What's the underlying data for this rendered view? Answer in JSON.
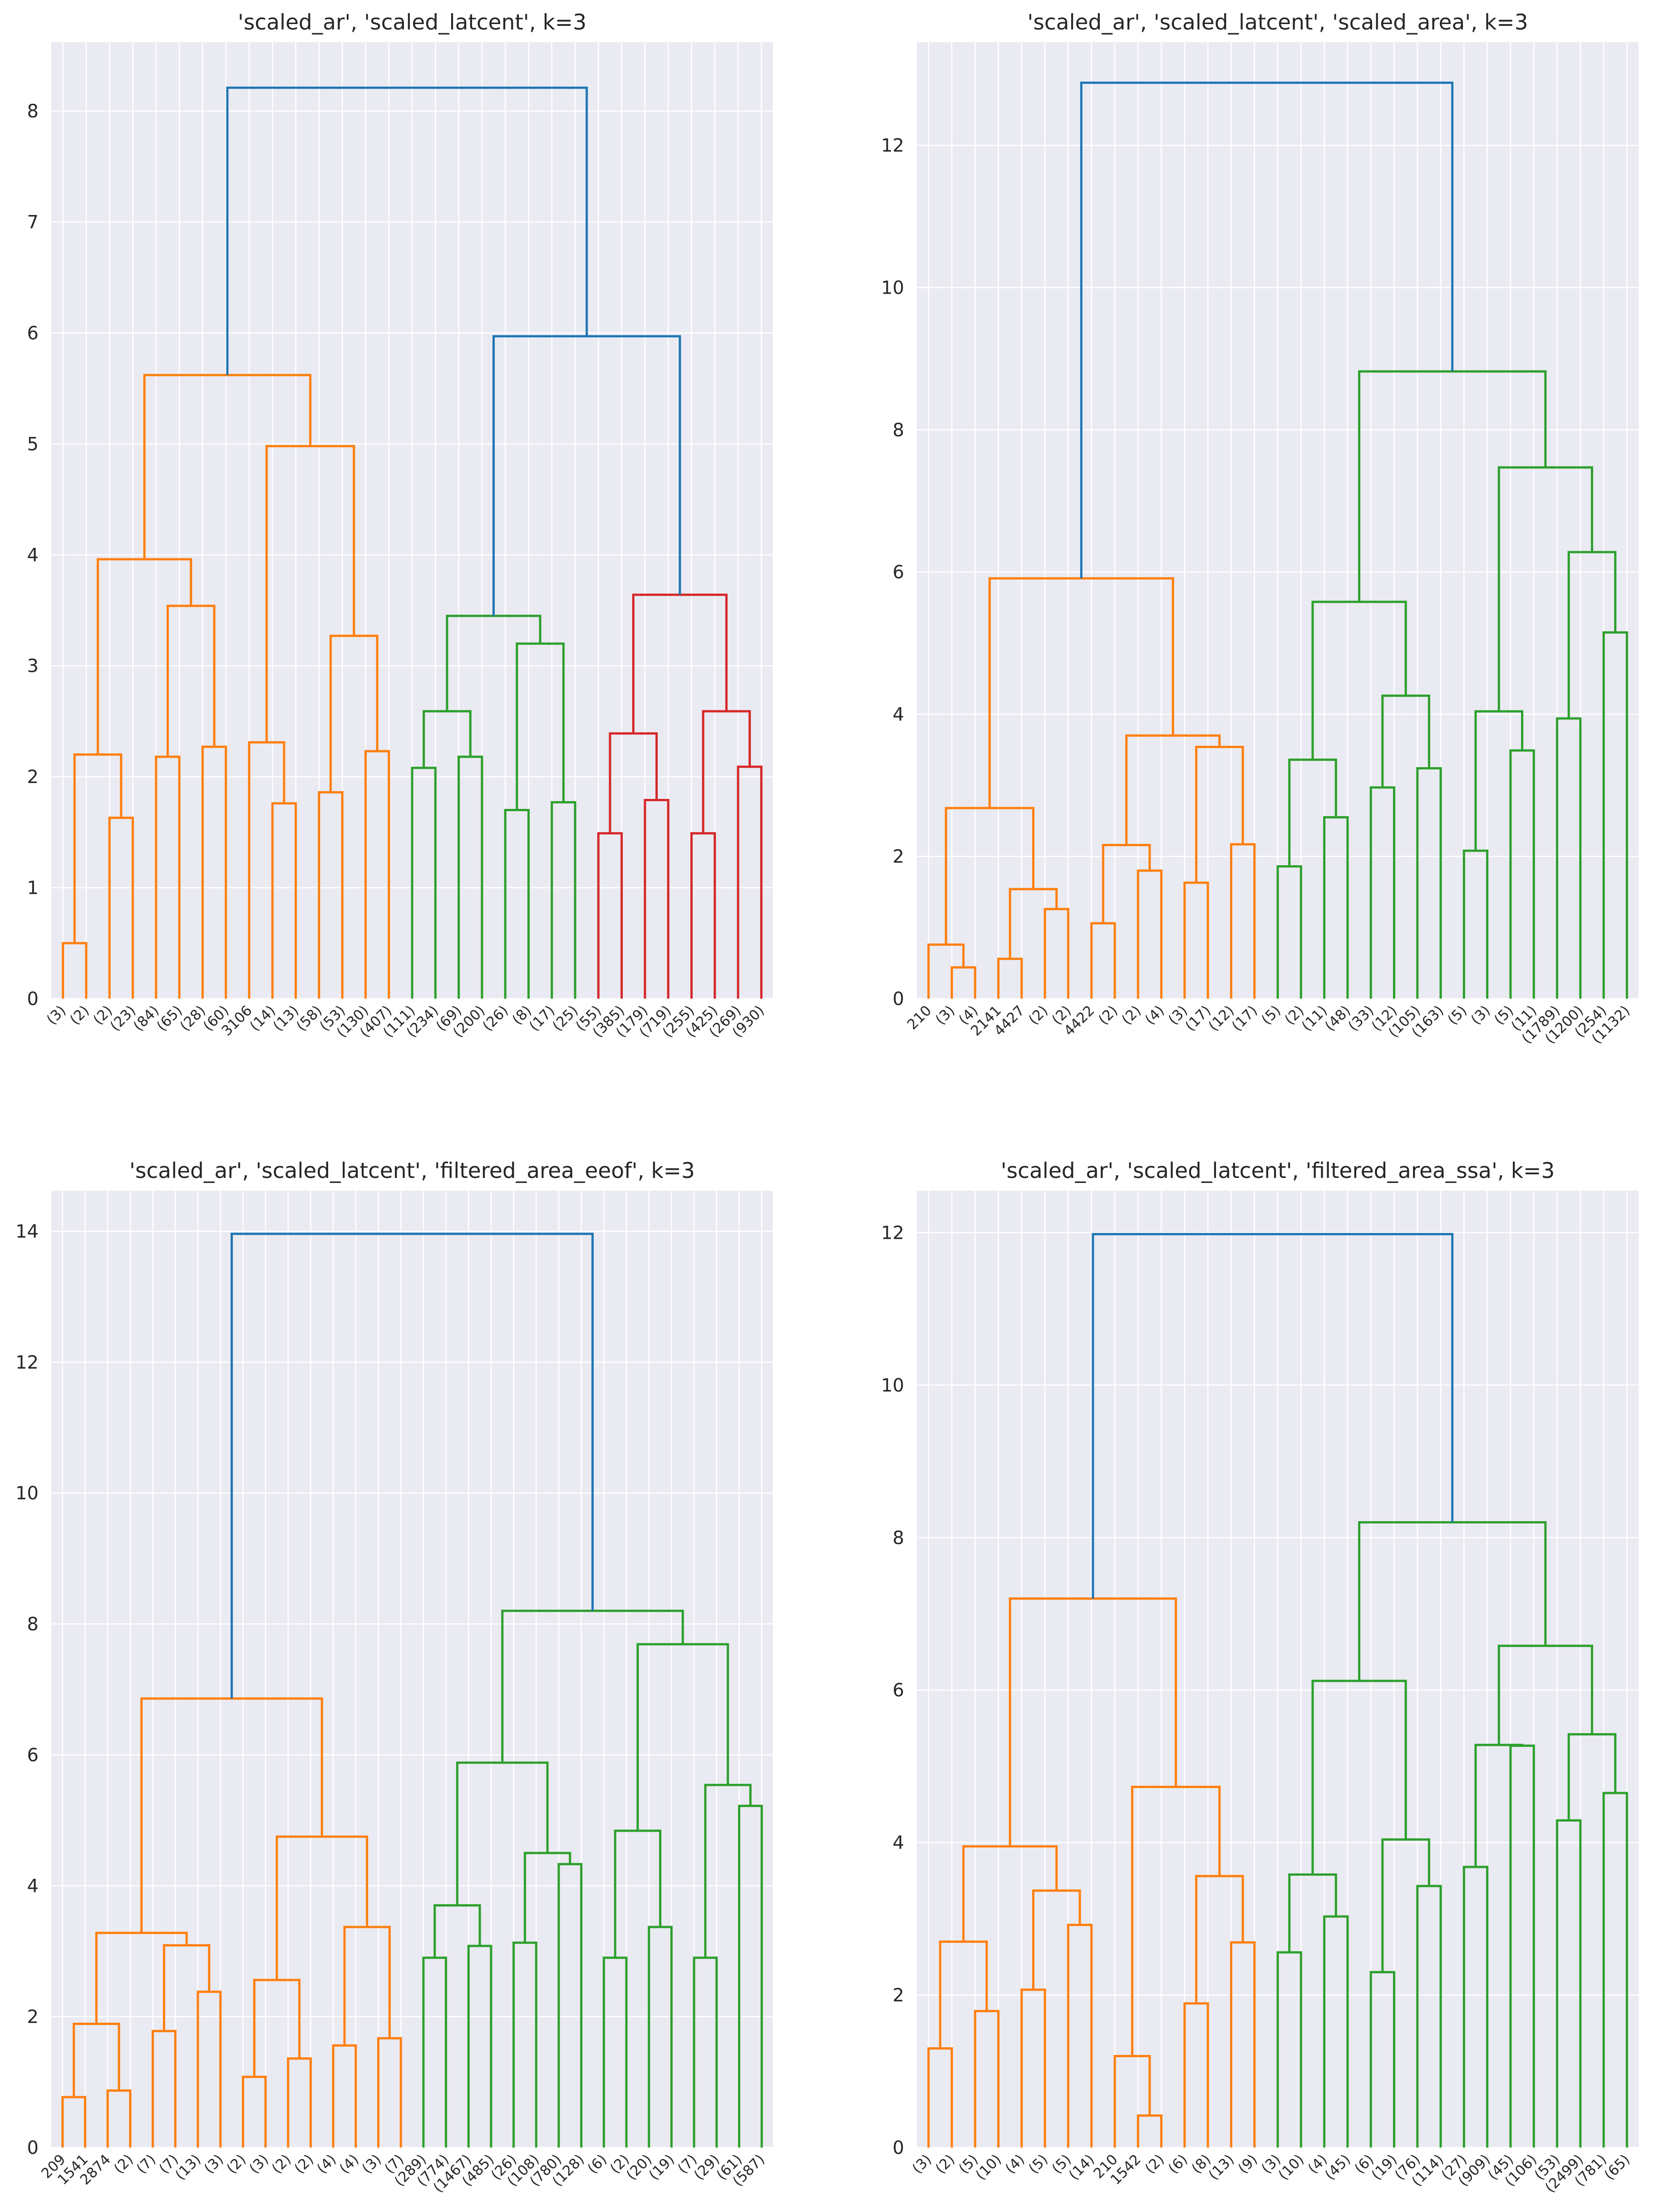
{
  "colors": {
    "above_threshold": "#1f77b4",
    "cluster_1": "#ff7f0e",
    "cluster_2": "#2ca02c",
    "cluster_3": "#d62728",
    "plot_background": "#eaeaf2",
    "grid": "#ffffff"
  },
  "chart_data": [
    {
      "type": "dendrogram",
      "title": "'scaled_ar', 'scaled_latcent', k=3",
      "xlabel": "",
      "ylabel": "",
      "ylim": [
        0,
        8.62
      ],
      "yticks": [
        0,
        1,
        2,
        3,
        4,
        5,
        6,
        7,
        8
      ],
      "grid": true,
      "leaf_labels": [
        "(3)",
        "(2)",
        "(2)",
        "(23)",
        "(84)",
        "(65)",
        "(28)",
        "(60)",
        "3106",
        "(14)",
        "(13)",
        "(58)",
        "(53)",
        "(130)",
        "(407)",
        "(111)",
        "(234)",
        "(69)",
        "(200)",
        "(26)",
        "(8)",
        "(17)",
        "(25)",
        "(55)",
        "(385)",
        "(179)",
        "(719)",
        "(255)",
        "(425)",
        "(269)",
        "(930)"
      ],
      "links": [
        {
          "left": 0,
          "right": 1,
          "height": 0.5,
          "cluster": 1
        },
        {
          "left": 2,
          "right": 3,
          "height": 1.63,
          "cluster": 1
        },
        {
          "left": 31,
          "right": 32,
          "height": 2.2,
          "cluster": 1
        },
        {
          "left": 4,
          "right": 5,
          "height": 2.18,
          "cluster": 1
        },
        {
          "left": 6,
          "right": 7,
          "height": 2.27,
          "cluster": 1
        },
        {
          "left": 34,
          "right": 35,
          "height": 3.54,
          "cluster": 1
        },
        {
          "left": 33,
          "right": 36,
          "height": 3.96,
          "cluster": 1
        },
        {
          "left": 9,
          "right": 10,
          "height": 1.76,
          "cluster": 1
        },
        {
          "left": 8,
          "right": 38,
          "height": 2.31,
          "cluster": 1
        },
        {
          "left": 11,
          "right": 12,
          "height": 1.86,
          "cluster": 1
        },
        {
          "left": 13,
          "right": 14,
          "height": 2.23,
          "cluster": 1
        },
        {
          "left": 40,
          "right": 41,
          "height": 3.27,
          "cluster": 1
        },
        {
          "left": 39,
          "right": 42,
          "height": 4.98,
          "cluster": 1
        },
        {
          "left": 37,
          "right": 43,
          "height": 5.62,
          "cluster": 1
        },
        {
          "left": 15,
          "right": 16,
          "height": 2.08,
          "cluster": 2
        },
        {
          "left": 17,
          "right": 18,
          "height": 2.18,
          "cluster": 2
        },
        {
          "left": 45,
          "right": 46,
          "height": 2.59,
          "cluster": 2
        },
        {
          "left": 19,
          "right": 20,
          "height": 1.7,
          "cluster": 2
        },
        {
          "left": 21,
          "right": 22,
          "height": 1.77,
          "cluster": 2
        },
        {
          "left": 48,
          "right": 49,
          "height": 3.2,
          "cluster": 2
        },
        {
          "left": 47,
          "right": 50,
          "height": 3.45,
          "cluster": 2
        },
        {
          "left": 23,
          "right": 24,
          "height": 1.49,
          "cluster": 3
        },
        {
          "left": 25,
          "right": 26,
          "height": 1.79,
          "cluster": 3
        },
        {
          "left": 52,
          "right": 53,
          "height": 2.39,
          "cluster": 3
        },
        {
          "left": 27,
          "right": 28,
          "height": 1.49,
          "cluster": 3
        },
        {
          "left": 29,
          "right": 30,
          "height": 2.09,
          "cluster": 3
        },
        {
          "left": 55,
          "right": 56,
          "height": 2.59,
          "cluster": 3
        },
        {
          "left": 54,
          "right": 57,
          "height": 3.64,
          "cluster": 3
        },
        {
          "left": 51,
          "right": 58,
          "height": 5.97,
          "cluster": 0
        },
        {
          "left": 44,
          "right": 59,
          "height": 8.21,
          "cluster": 0
        }
      ]
    },
    {
      "type": "dendrogram",
      "title": "'scaled_ar', 'scaled_latcent', 'scaled_area', k=3",
      "xlabel": "",
      "ylabel": "",
      "ylim": [
        0,
        13.45
      ],
      "yticks": [
        0,
        2,
        4,
        6,
        8,
        10,
        12
      ],
      "grid": true,
      "leaf_labels": [
        "210",
        "(3)",
        "(4)",
        "2141",
        "4427",
        "(2)",
        "(2)",
        "4422",
        "(2)",
        "(2)",
        "(4)",
        "(3)",
        "(17)",
        "(12)",
        "(17)",
        "(5)",
        "(2)",
        "(11)",
        "(48)",
        "(33)",
        "(12)",
        "(105)",
        "(163)",
        "(5)",
        "(3)",
        "(5)",
        "(11)",
        "(1789)",
        "(1200)",
        "(254)",
        "(1132)"
      ],
      "links": [
        {
          "left": 1,
          "right": 2,
          "height": 0.44,
          "cluster": 1
        },
        {
          "left": 0,
          "right": 31,
          "height": 0.76,
          "cluster": 1
        },
        {
          "left": 3,
          "right": 4,
          "height": 0.56,
          "cluster": 1
        },
        {
          "left": 5,
          "right": 6,
          "height": 1.26,
          "cluster": 1
        },
        {
          "left": 33,
          "right": 34,
          "height": 1.54,
          "cluster": 1
        },
        {
          "left": 32,
          "right": 35,
          "height": 2.68,
          "cluster": 1
        },
        {
          "left": 7,
          "right": 8,
          "height": 1.06,
          "cluster": 1
        },
        {
          "left": 9,
          "right": 10,
          "height": 1.8,
          "cluster": 1
        },
        {
          "left": 37,
          "right": 38,
          "height": 2.16,
          "cluster": 1
        },
        {
          "left": 11,
          "right": 12,
          "height": 1.63,
          "cluster": 1
        },
        {
          "left": 13,
          "right": 14,
          "height": 2.17,
          "cluster": 1
        },
        {
          "left": 40,
          "right": 41,
          "height": 3.54,
          "cluster": 1
        },
        {
          "left": 39,
          "right": 42,
          "height": 3.7,
          "cluster": 1
        },
        {
          "left": 36,
          "right": 43,
          "height": 5.91,
          "cluster": 1
        },
        {
          "left": 15,
          "right": 16,
          "height": 1.86,
          "cluster": 2
        },
        {
          "left": 17,
          "right": 18,
          "height": 2.55,
          "cluster": 2
        },
        {
          "left": 45,
          "right": 46,
          "height": 3.36,
          "cluster": 2
        },
        {
          "left": 19,
          "right": 20,
          "height": 2.97,
          "cluster": 2
        },
        {
          "left": 21,
          "right": 22,
          "height": 3.24,
          "cluster": 2
        },
        {
          "left": 48,
          "right": 49,
          "height": 4.26,
          "cluster": 2
        },
        {
          "left": 47,
          "right": 50,
          "height": 5.58,
          "cluster": 2
        },
        {
          "left": 23,
          "right": 24,
          "height": 2.08,
          "cluster": 2
        },
        {
          "left": 25,
          "right": 26,
          "height": 3.49,
          "cluster": 2
        },
        {
          "left": 52,
          "right": 53,
          "height": 4.04,
          "cluster": 2
        },
        {
          "left": 27,
          "right": 28,
          "height": 3.94,
          "cluster": 2
        },
        {
          "left": 29,
          "right": 30,
          "height": 5.15,
          "cluster": 2
        },
        {
          "left": 55,
          "right": 56,
          "height": 6.28,
          "cluster": 2
        },
        {
          "left": 54,
          "right": 57,
          "height": 7.47,
          "cluster": 2
        },
        {
          "left": 51,
          "right": 58,
          "height": 8.82,
          "cluster": 2
        },
        {
          "left": 44,
          "right": 59,
          "height": 12.88,
          "cluster": 0
        }
      ]
    },
    {
      "type": "dendrogram",
      "title": "'scaled_ar', 'scaled_latcent', 'filtered_area_eeof', k=3",
      "xlabel": "",
      "ylabel": "",
      "ylim": [
        0,
        14.62
      ],
      "yticks": [
        0,
        2,
        4,
        6,
        8,
        10,
        12,
        14
      ],
      "grid": true,
      "leaf_labels": [
        "209",
        "1541",
        "2874",
        "(2)",
        "(7)",
        "(7)",
        "(13)",
        "(3)",
        "(2)",
        "(3)",
        "(2)",
        "(2)",
        "(4)",
        "(4)",
        "(3)",
        "(7)",
        "(289)",
        "(774)",
        "(1467)",
        "(485)",
        "(26)",
        "(108)",
        "(780)",
        "(128)",
        "(6)",
        "(2)",
        "(20)",
        "(19)",
        "(7)",
        "(29)",
        "(61)",
        "(587)"
      ],
      "links": [
        {
          "left": 0,
          "right": 1,
          "height": 0.77,
          "cluster": 1
        },
        {
          "left": 2,
          "right": 3,
          "height": 0.87,
          "cluster": 1
        },
        {
          "left": 32,
          "right": 33,
          "height": 1.89,
          "cluster": 1
        },
        {
          "left": 4,
          "right": 5,
          "height": 1.78,
          "cluster": 1
        },
        {
          "left": 6,
          "right": 7,
          "height": 2.38,
          "cluster": 1
        },
        {
          "left": 35,
          "right": 36,
          "height": 3.09,
          "cluster": 1
        },
        {
          "left": 34,
          "right": 37,
          "height": 3.28,
          "cluster": 1
        },
        {
          "left": 8,
          "right": 9,
          "height": 1.08,
          "cluster": 1
        },
        {
          "left": 10,
          "right": 11,
          "height": 1.36,
          "cluster": 1
        },
        {
          "left": 39,
          "right": 40,
          "height": 2.56,
          "cluster": 1
        },
        {
          "left": 12,
          "right": 13,
          "height": 1.56,
          "cluster": 1
        },
        {
          "left": 14,
          "right": 15,
          "height": 1.67,
          "cluster": 1
        },
        {
          "left": 42,
          "right": 43,
          "height": 3.37,
          "cluster": 1
        },
        {
          "left": 41,
          "right": 44,
          "height": 4.75,
          "cluster": 1
        },
        {
          "left": 38,
          "right": 45,
          "height": 6.86,
          "cluster": 1
        },
        {
          "left": 16,
          "right": 17,
          "height": 2.9,
          "cluster": 2
        },
        {
          "left": 18,
          "right": 19,
          "height": 3.08,
          "cluster": 2
        },
        {
          "left": 47,
          "right": 48,
          "height": 3.7,
          "cluster": 2
        },
        {
          "left": 20,
          "right": 21,
          "height": 3.13,
          "cluster": 2
        },
        {
          "left": 22,
          "right": 23,
          "height": 4.33,
          "cluster": 2
        },
        {
          "left": 50,
          "right": 51,
          "height": 4.5,
          "cluster": 2
        },
        {
          "left": 49,
          "right": 52,
          "height": 5.88,
          "cluster": 2
        },
        {
          "left": 24,
          "right": 25,
          "height": 2.9,
          "cluster": 2
        },
        {
          "left": 26,
          "right": 27,
          "height": 3.37,
          "cluster": 2
        },
        {
          "left": 54,
          "right": 55,
          "height": 4.84,
          "cluster": 2
        },
        {
          "left": 28,
          "right": 29,
          "height": 2.9,
          "cluster": 2
        },
        {
          "left": 30,
          "right": 31,
          "height": 5.22,
          "cluster": 2
        },
        {
          "left": 57,
          "right": 58,
          "height": 5.54,
          "cluster": 2
        },
        {
          "left": 56,
          "right": 59,
          "height": 7.69,
          "cluster": 2
        },
        {
          "left": 53,
          "right": 60,
          "height": 8.2,
          "cluster": 2
        },
        {
          "left": 46,
          "right": 61,
          "height": 13.96,
          "cluster": 0
        }
      ]
    },
    {
      "type": "dendrogram",
      "title": "'scaled_ar', 'scaled_latcent', 'filtered_area_ssa', k=3",
      "xlabel": "",
      "ylabel": "",
      "ylim": [
        0,
        12.55
      ],
      "yticks": [
        0,
        2,
        4,
        6,
        8,
        10,
        12
      ],
      "grid": true,
      "leaf_labels": [
        "(3)",
        "(2)",
        "(5)",
        "(10)",
        "(4)",
        "(5)",
        "(5)",
        "(14)",
        "210",
        "1542",
        "(2)",
        "(6)",
        "(8)",
        "(13)",
        "(9)",
        "(3)",
        "(10)",
        "(4)",
        "(45)",
        "(6)",
        "(19)",
        "(76)",
        "(114)",
        "(27)",
        "(909)",
        "(45)",
        "(106)",
        "(53)",
        "(2499)",
        "(781)",
        "(65)"
      ],
      "links": [
        {
          "left": 0,
          "right": 1,
          "height": 1.3,
          "cluster": 1
        },
        {
          "left": 2,
          "right": 3,
          "height": 1.79,
          "cluster": 1
        },
        {
          "left": 31,
          "right": 32,
          "height": 2.7,
          "cluster": 1
        },
        {
          "left": 4,
          "right": 5,
          "height": 2.07,
          "cluster": 1
        },
        {
          "left": 6,
          "right": 7,
          "height": 2.92,
          "cluster": 1
        },
        {
          "left": 34,
          "right": 35,
          "height": 3.37,
          "cluster": 1
        },
        {
          "left": 33,
          "right": 36,
          "height": 3.95,
          "cluster": 1
        },
        {
          "left": 9,
          "right": 10,
          "height": 0.42,
          "cluster": 1
        },
        {
          "left": 8,
          "right": 38,
          "height": 1.2,
          "cluster": 1
        },
        {
          "left": 11,
          "right": 12,
          "height": 1.89,
          "cluster": 1
        },
        {
          "left": 13,
          "right": 14,
          "height": 2.69,
          "cluster": 1
        },
        {
          "left": 40,
          "right": 41,
          "height": 3.56,
          "cluster": 1
        },
        {
          "left": 39,
          "right": 42,
          "height": 4.73,
          "cluster": 1
        },
        {
          "left": 37,
          "right": 43,
          "height": 7.2,
          "cluster": 1
        },
        {
          "left": 15,
          "right": 16,
          "height": 2.56,
          "cluster": 2
        },
        {
          "left": 17,
          "right": 18,
          "height": 3.03,
          "cluster": 2
        },
        {
          "left": 45,
          "right": 46,
          "height": 3.58,
          "cluster": 2
        },
        {
          "left": 19,
          "right": 20,
          "height": 2.3,
          "cluster": 2
        },
        {
          "left": 21,
          "right": 22,
          "height": 3.43,
          "cluster": 2
        },
        {
          "left": 48,
          "right": 49,
          "height": 4.04,
          "cluster": 2
        },
        {
          "left": 47,
          "right": 50,
          "height": 6.12,
          "cluster": 2
        },
        {
          "left": 23,
          "right": 24,
          "height": 3.68,
          "cluster": 2
        },
        {
          "left": 25,
          "right": 26,
          "height": 5.27,
          "cluster": 2
        },
        {
          "left": 52,
          "right": 53,
          "height": 5.28,
          "cluster": 2
        },
        {
          "left": 27,
          "right": 28,
          "height": 4.29,
          "cluster": 2
        },
        {
          "left": 29,
          "right": 30,
          "height": 4.65,
          "cluster": 2
        },
        {
          "left": 55,
          "right": 56,
          "height": 5.42,
          "cluster": 2
        },
        {
          "left": 54,
          "right": 57,
          "height": 6.58,
          "cluster": 2
        },
        {
          "left": 51,
          "right": 58,
          "height": 8.2,
          "cluster": 2
        },
        {
          "left": 44,
          "right": 59,
          "height": 11.98,
          "cluster": 0
        }
      ]
    }
  ]
}
